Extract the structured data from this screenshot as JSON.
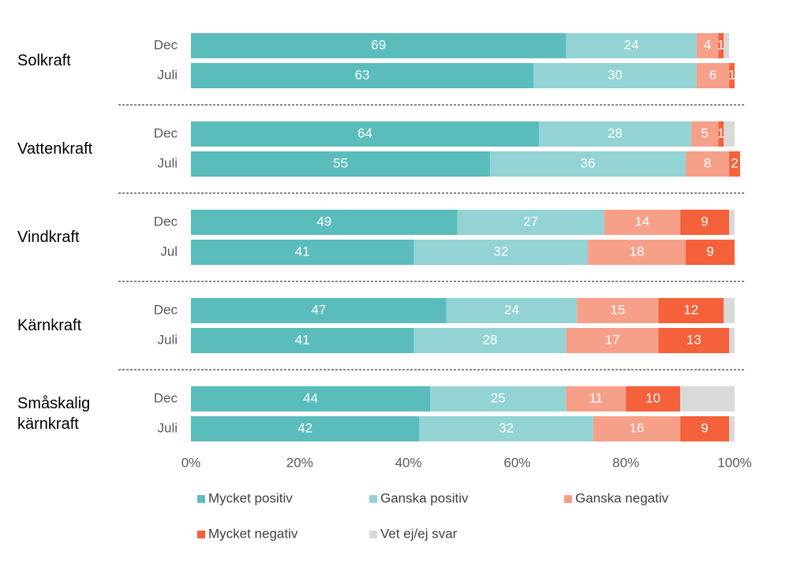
{
  "chart_data": {
    "type": "stacked-bar-horizontal",
    "groups": [
      "Solkraft",
      "Vattenkraft",
      "Vindkraft",
      "Kärnkraft",
      "Småskalig kärnkraft"
    ],
    "categories": [
      "Dec",
      "Juli",
      "Dec",
      "Juli",
      "Dec",
      "Jul",
      "Dec",
      "Juli",
      "Dec",
      "Juli"
    ],
    "series": [
      {
        "name": "Mycket positiv",
        "color": "#5bbcbc",
        "data_labels": true,
        "values": [
          69,
          63,
          64,
          55,
          49,
          41,
          47,
          41,
          44,
          42
        ]
      },
      {
        "name": "Ganska positiv",
        "color": "#93d3d3",
        "data_labels": true,
        "values": [
          24,
          30,
          28,
          36,
          27,
          32,
          24,
          28,
          25,
          32
        ]
      },
      {
        "name": "Ganska negativ",
        "color": "#f7a089",
        "data_labels": true,
        "values": [
          4,
          6,
          5,
          8,
          14,
          18,
          15,
          17,
          11,
          16
        ]
      },
      {
        "name": "Mycket negativ",
        "color": "#f4613b",
        "data_labels": true,
        "values": [
          1,
          1,
          1,
          2,
          9,
          9,
          12,
          13,
          10,
          9
        ]
      },
      {
        "name": "Vet ej/ej svar",
        "color": "#d9d9d9",
        "data_labels": false,
        "values": [
          1,
          0,
          2,
          0,
          1,
          0,
          2,
          1,
          10,
          1
        ]
      }
    ],
    "xlim": [
      0,
      100
    ],
    "xticks": [
      {
        "value": 0,
        "label": "0%"
      },
      {
        "value": 20,
        "label": "20%"
      },
      {
        "value": 40,
        "label": "40%"
      },
      {
        "value": 60,
        "label": "60%"
      },
      {
        "value": 80,
        "label": "80%"
      },
      {
        "value": 100,
        "label": "100%"
      }
    ]
  }
}
